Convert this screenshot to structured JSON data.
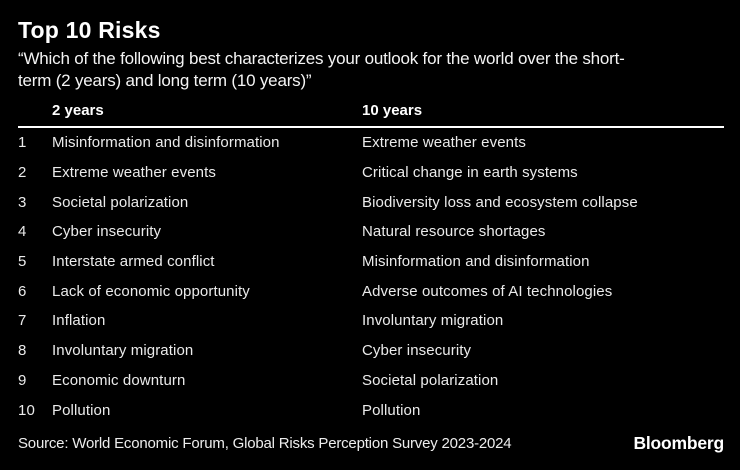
{
  "chart_data": {
    "type": "table",
    "title": "Top 10 Risks",
    "subtitle": "“Which of the following best characterizes your outlook for the world over the short-\nterm (2 years) and long term (10 years)”",
    "columns": [
      "2 years",
      "10 years"
    ],
    "rows": [
      {
        "rank": "1",
        "short_term": "Misinformation and disinformation",
        "long_term": "Extreme weather events"
      },
      {
        "rank": "2",
        "short_term": "Extreme weather events",
        "long_term": "Critical change in earth systems"
      },
      {
        "rank": "3",
        "short_term": "Societal polarization",
        "long_term": "Biodiversity loss and ecosystem collapse"
      },
      {
        "rank": "4",
        "short_term": "Cyber insecurity",
        "long_term": "Natural resource shortages"
      },
      {
        "rank": "5",
        "short_term": "Interstate armed conflict",
        "long_term": "Misinformation and disinformation"
      },
      {
        "rank": "6",
        "short_term": "Lack of economic opportunity",
        "long_term": "Adverse outcomes of AI technologies"
      },
      {
        "rank": "7",
        "short_term": "Inflation",
        "long_term": "Involuntary migration"
      },
      {
        "rank": "8",
        "short_term": "Involuntary migration",
        "long_term": "Cyber insecurity"
      },
      {
        "rank": "9",
        "short_term": "Economic downturn",
        "long_term": "Societal polarization"
      },
      {
        "rank": "10",
        "short_term": "Pollution",
        "long_term": "Pollution"
      }
    ],
    "source": "Source: World Economic Forum, Global Risks Perception Survey 2023-2024",
    "brand": "Bloomberg",
    "legend_position": "none",
    "grid": false
  },
  "colors": {
    "background": "#000000",
    "title_text": "#ffffff",
    "row_text": "#ebebeb",
    "divider": "#ffffff"
  }
}
